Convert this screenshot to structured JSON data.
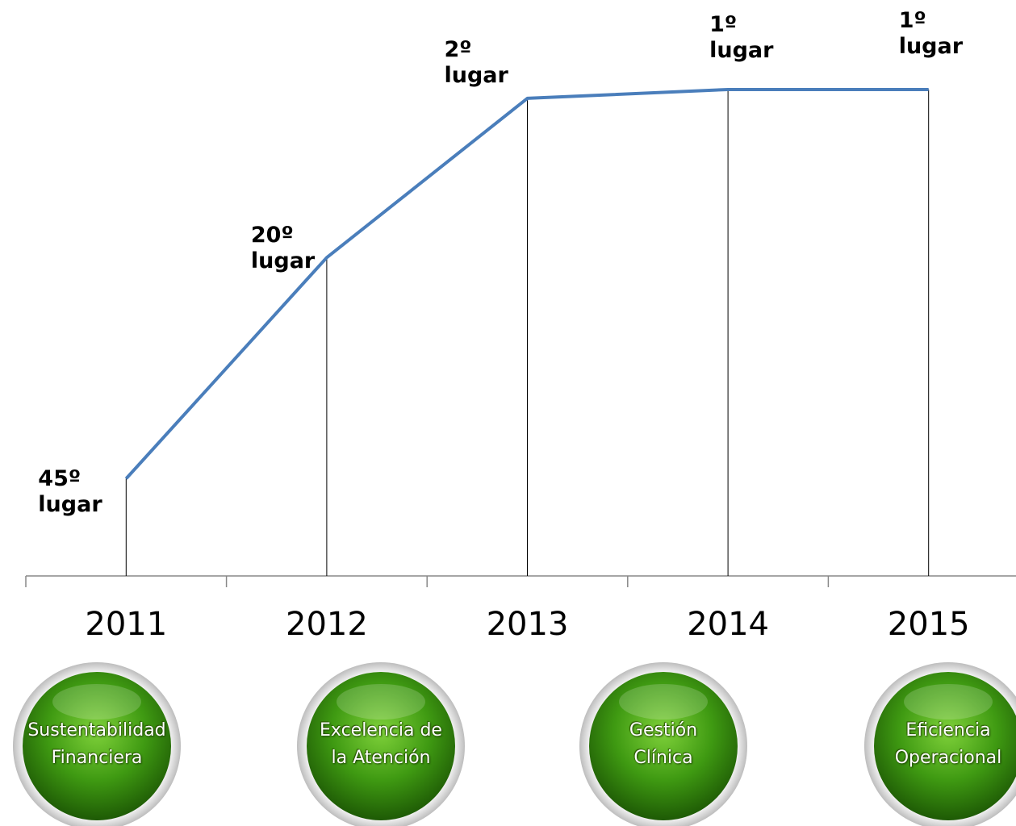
{
  "chart_data": {
    "type": "line",
    "categories": [
      "2011",
      "2012",
      "2013",
      "2014",
      "2015"
    ],
    "values": [
      45,
      20,
      2,
      1,
      1
    ],
    "value_labels": [
      "45º lugar",
      "20º lugar",
      "2º lugar",
      "1º lugar",
      "1º lugar"
    ],
    "color": "#4a7ebb",
    "ylim": [
      56,
      0
    ]
  },
  "pillars": [
    "Sustentabilidad Financiera",
    "Excelencia de la Atención",
    "Gestión Clínica",
    "Eficiencia Operacional"
  ]
}
